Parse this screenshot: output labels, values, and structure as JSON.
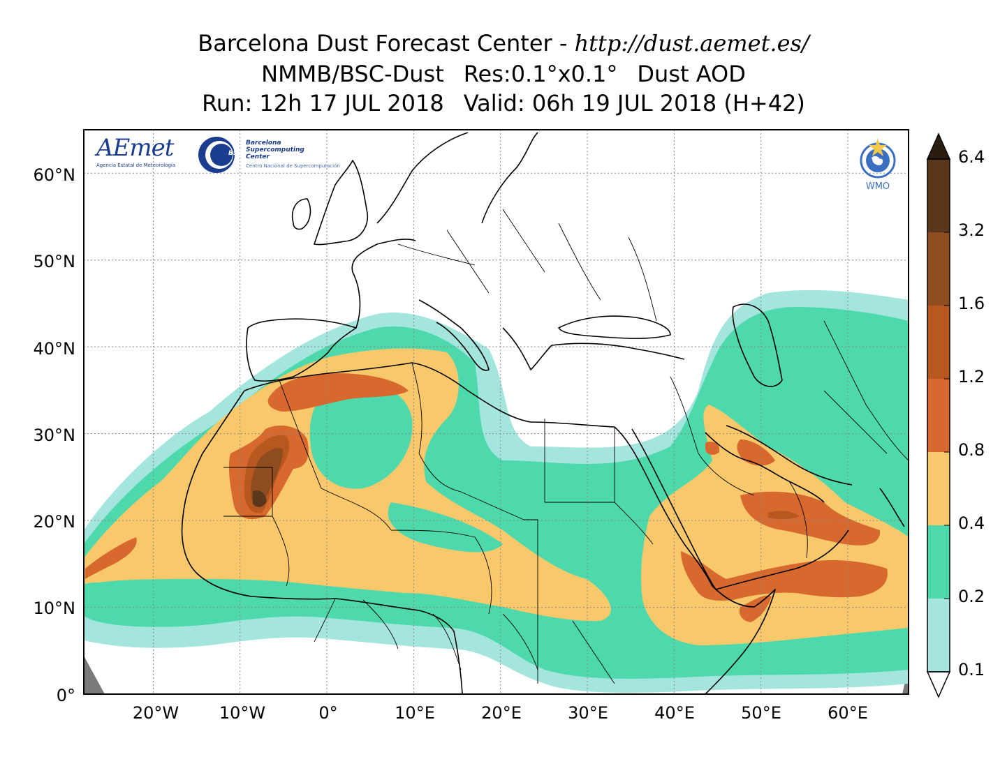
{
  "title": {
    "line1_prefix": "Barcelona Dust Forecast Center - ",
    "line1_url": "http://dust.aemet.es/",
    "line2_model": "NMMB/BSC-Dust",
    "line2_res": "Res:0.1°x0.1°",
    "line2_var": "Dust AOD",
    "line3_run": "Run: 12h 17 JUL 2018",
    "line3_valid": "Valid: 06h 19 JUL 2018 (H+42)"
  },
  "axes": {
    "lat_labels": [
      "0°",
      "10°N",
      "20°N",
      "30°N",
      "40°N",
      "50°N",
      "60°N"
    ],
    "lon_labels": [
      "20°W",
      "10°W",
      "0°",
      "10°E",
      "20°E",
      "30°E",
      "40°E",
      "50°E",
      "60°E"
    ],
    "lat_range": [
      0,
      65
    ],
    "lon_range": [
      -28,
      67
    ],
    "grid": "dotted"
  },
  "colorbar": {
    "levels": [
      "0.1",
      "0.2",
      "0.4",
      "0.8",
      "1.2",
      "1.6",
      "3.2",
      "6.4"
    ],
    "colors": [
      "#a4e6de",
      "#4ed9ac",
      "#f8c86a",
      "#d8692e",
      "#b65820",
      "#8f4c1f",
      "#5a361b",
      "#2b1c10"
    ],
    "extend": "both"
  },
  "logos": {
    "aemet_text": "AEmet",
    "aemet_sub": "Agencia Estatal de Meteorología",
    "bsc_badge": "BSC",
    "bsc_name_1": "Barcelona",
    "bsc_name_2": "Supercomputing",
    "bsc_name_3": "Center",
    "bsc_sub": "Centro Nacional de Supercomputación",
    "wmo_text": "WMO"
  },
  "colors": {
    "frame": "#000000",
    "grid": "#888888",
    "border": "#000000",
    "no_data": "#7a7a7a"
  }
}
